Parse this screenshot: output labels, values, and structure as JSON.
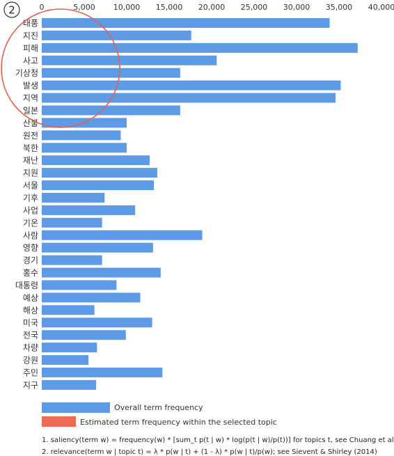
{
  "topic_badge": "2",
  "chart_data": {
    "type": "bar",
    "orientation": "horizontal",
    "categories": [
      "태풍",
      "지진",
      "피해",
      "사고",
      "기상청",
      "발생",
      "지역",
      "일본",
      "산불",
      "원전",
      "북한",
      "재난",
      "지원",
      "서울",
      "기후",
      "사업",
      "기온",
      "사람",
      "영향",
      "경기",
      "홍수",
      "대통령",
      "예상",
      "해상",
      "미국",
      "전국",
      "차량",
      "강원",
      "주민",
      "지구"
    ],
    "series": [
      {
        "name": "Overall term frequency",
        "values": [
          33900,
          17600,
          37200,
          20600,
          16300,
          35200,
          34600,
          16300,
          10000,
          9300,
          10000,
          12700,
          13600,
          13200,
          7400,
          11000,
          7100,
          18900,
          13100,
          7100,
          14000,
          8800,
          11600,
          6200,
          13000,
          9900,
          6500,
          5500,
          14200,
          6400
        ]
      }
    ],
    "xlim": [
      0,
      40000
    ],
    "xticks": [
      "0",
      "5,000",
      "10,000",
      "15,000",
      "20,000",
      "25,000",
      "30,000",
      "35,000",
      "40,000"
    ],
    "grid": false,
    "legend_position": "bottom",
    "legend": [
      {
        "label": "Overall term frequency",
        "color": "#5d9be6"
      },
      {
        "label": "Estimated term frequency within the selected topic",
        "color": "#f16a55"
      }
    ]
  },
  "notes": [
    "1. saliency(term w) = frequency(w) * [sum_t p(t | w) * log(p(t | w)/p(t))] for topics t, see Chuang et al (2012)",
    "2. relevance(term w | topic t) = λ * p(w | t) + (1 - λ) * p(w | t)/p(w); see Sievent & Shirley (2014)"
  ],
  "colors": {
    "bar": "#5d9be6",
    "topic": "#f16a55",
    "circle": "#e8604c"
  }
}
